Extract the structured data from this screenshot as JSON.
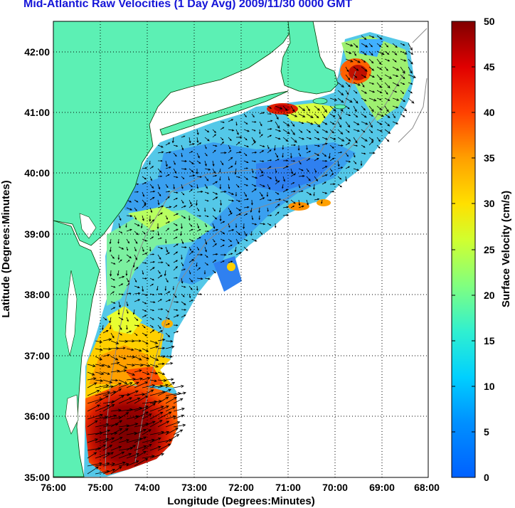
{
  "title": "Mid-Atlantic Raw Velocities (1 Day Avg) 2009/11/30 0000 GMT",
  "map": {
    "xlabel": "Longitude (Degrees:Minutes)",
    "ylabel": "Latitude (Degrees:Minutes)",
    "lon_ticks": [
      "76:00",
      "75:00",
      "74:00",
      "73:00",
      "72:00",
      "71:00",
      "70:00",
      "69:00",
      "68:00"
    ],
    "lat_ticks": [
      "42:00",
      "41:00",
      "40:00",
      "39:00",
      "38:00",
      "37:00",
      "36:00",
      "35:00"
    ],
    "land_color": "#5cf0b4",
    "grid": "dotted"
  },
  "colorbar": {
    "label": "Surface Velocity (cm/s)",
    "ticks": [
      "50",
      "45",
      "40",
      "35",
      "30",
      "25",
      "20",
      "15",
      "10",
      "5",
      "0"
    ],
    "range": [
      0,
      50
    ],
    "colormap": "jet"
  }
}
